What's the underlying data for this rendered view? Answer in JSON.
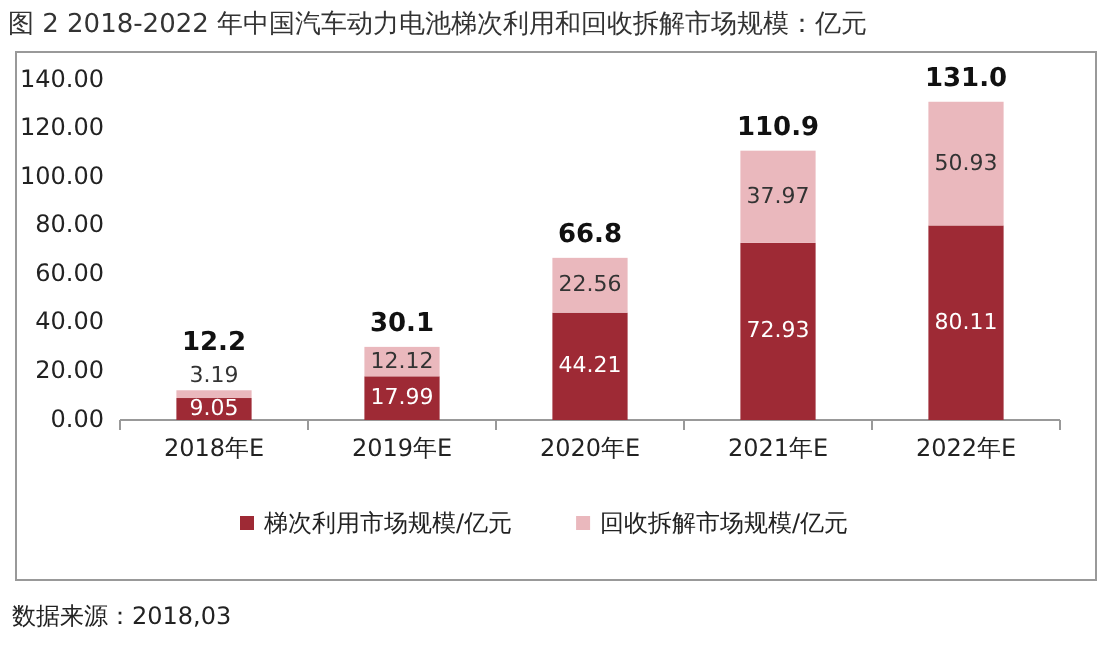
{
  "chart_data": {
    "type": "bar",
    "stacked": true,
    "title": "图 2 2018-2022 年中国汽车动力电池梯次利用和回收拆解市场规模：亿元",
    "categories": [
      "2018年E",
      "2019年E",
      "2020年E",
      "2021年E",
      "2022年E"
    ],
    "series": [
      {
        "name": "梯次利用市场规模/亿元",
        "color": "#9e2a35",
        "values": [
          9.05,
          17.99,
          44.21,
          72.93,
          80.11
        ]
      },
      {
        "name": "回收拆解市场规模/亿元",
        "color": "#eab8bd",
        "values": [
          3.19,
          12.12,
          22.56,
          37.97,
          50.93
        ]
      }
    ],
    "data_labels": true,
    "totals": [
      "12.2",
      "30.1",
      "66.8",
      "110.9",
      "131.0"
    ],
    "ylim": [
      0,
      140
    ],
    "yticks": [
      {
        "value": 0,
        "label": "0.00"
      },
      {
        "value": 20,
        "label": "20.00"
      },
      {
        "value": 40,
        "label": "40.00"
      },
      {
        "value": 60,
        "label": "60.00"
      },
      {
        "value": 80,
        "label": "80.00"
      },
      {
        "value": 100,
        "label": "100.00"
      },
      {
        "value": 120,
        "label": "120.00"
      },
      {
        "value": 140,
        "label": "140.00"
      }
    ],
    "legend": "bottom",
    "annotations": [
      "数据来源：2018,03"
    ]
  }
}
